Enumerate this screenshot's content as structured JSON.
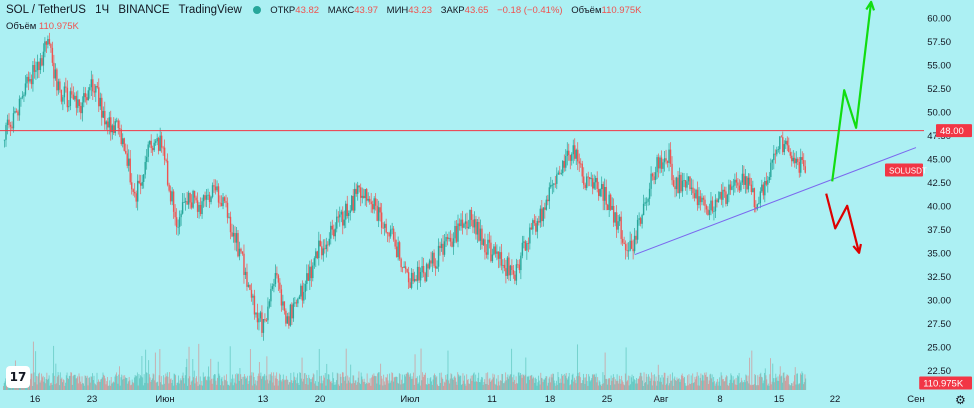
{
  "header": {
    "symbol": "SOL / TetherUS",
    "interval": "1Ч",
    "exchange": "BINANCE",
    "brand": "TradingView",
    "open_label": "ОТКР",
    "open_value": "43.82",
    "high_label": "МАКС",
    "high_value": "43.97",
    "low_label": "МИН",
    "low_value": "43.23",
    "close_label": "ЗАКР",
    "close_value": "43.65",
    "change": "−0.18 (−0.41%)",
    "volume_label": "Объём",
    "volume_value": "110.975K"
  },
  "volume_legend": {
    "label": "Объём",
    "value": "110.975K"
  },
  "logo_text": "17",
  "settings_icon": "gear-icon",
  "colors": {
    "background": "#acf0f3",
    "up": "#26a69a",
    "down": "#ef5350",
    "level_line": "#f23645",
    "trendline": "#7b68ee",
    "arrow_up": "#11dd11",
    "arrow_down": "#dd0000"
  },
  "chart_data": {
    "type": "candlestick",
    "symbol": "SOLUSDT",
    "y_ticks": [
      22.5,
      25.0,
      27.5,
      30.0,
      32.5,
      35.0,
      37.5,
      40.0,
      42.5,
      45.0,
      47.5,
      50.0,
      52.5,
      55.0,
      57.5,
      60.0
    ],
    "ylim": [
      20.4,
      61.9
    ],
    "x_ticks": [
      "16",
      "23",
      "Июн",
      "13",
      "20",
      "Июл",
      "11",
      "18",
      "25",
      "Авг",
      "8",
      "15",
      "22",
      "Сен"
    ],
    "price_path": [
      {
        "t": 0,
        "p": 47
      },
      {
        "t": 7,
        "p": 52
      },
      {
        "t": 11,
        "p": 55
      },
      {
        "t": 15,
        "p": 57
      },
      {
        "t": 19,
        "p": 52
      },
      {
        "t": 25,
        "p": 50.5
      },
      {
        "t": 31,
        "p": 53
      },
      {
        "t": 34,
        "p": 49
      },
      {
        "t": 40,
        "p": 47.5
      },
      {
        "t": 44,
        "p": 41
      },
      {
        "t": 49,
        "p": 46
      },
      {
        "t": 53,
        "p": 46.5
      },
      {
        "t": 58,
        "p": 38
      },
      {
        "t": 62,
        "p": 41
      },
      {
        "t": 66,
        "p": 40
      },
      {
        "t": 70,
        "p": 42
      },
      {
        "t": 75,
        "p": 39
      },
      {
        "t": 80,
        "p": 34
      },
      {
        "t": 84,
        "p": 29
      },
      {
        "t": 87,
        "p": 27
      },
      {
        "t": 91,
        "p": 32
      },
      {
        "t": 95,
        "p": 28
      },
      {
        "t": 100,
        "p": 31
      },
      {
        "t": 105,
        "p": 35
      },
      {
        "t": 110,
        "p": 37
      },
      {
        "t": 116,
        "p": 40
      },
      {
        "t": 120,
        "p": 42
      },
      {
        "t": 126,
        "p": 39
      },
      {
        "t": 131,
        "p": 36
      },
      {
        "t": 136,
        "p": 32
      },
      {
        "t": 141,
        "p": 33
      },
      {
        "t": 146,
        "p": 35
      },
      {
        "t": 151,
        "p": 37
      },
      {
        "t": 156,
        "p": 38.5
      },
      {
        "t": 161,
        "p": 36
      },
      {
        "t": 166,
        "p": 34
      },
      {
        "t": 171,
        "p": 33
      },
      {
        "t": 176,
        "p": 37
      },
      {
        "t": 181,
        "p": 40
      },
      {
        "t": 186,
        "p": 44
      },
      {
        "t": 190,
        "p": 46
      },
      {
        "t": 194,
        "p": 43
      },
      {
        "t": 199,
        "p": 42
      },
      {
        "t": 203,
        "p": 40
      },
      {
        "t": 207,
        "p": 37
      },
      {
        "t": 210,
        "p": 35
      },
      {
        "t": 214,
        "p": 40
      },
      {
        "t": 218,
        "p": 44
      },
      {
        "t": 222,
        "p": 45.5
      },
      {
        "t": 225,
        "p": 42
      },
      {
        "t": 228,
        "p": 43
      },
      {
        "t": 232,
        "p": 41
      },
      {
        "t": 236,
        "p": 40
      },
      {
        "t": 240,
        "p": 40.5
      },
      {
        "t": 244,
        "p": 42
      },
      {
        "t": 248,
        "p": 43
      },
      {
        "t": 252,
        "p": 40
      },
      {
        "t": 256,
        "p": 44
      },
      {
        "t": 260,
        "p": 47
      },
      {
        "t": 264,
        "p": 45
      },
      {
        "t": 268,
        "p": 43.6
      }
    ],
    "volume_range": [
      0,
      110.975
    ],
    "horizontal_level": 48.0,
    "price_labels": [
      {
        "text": "48.00",
        "value": 48.0
      },
      {
        "text": "SOLUSDT",
        "value": 43.65
      },
      {
        "text": "110.975K",
        "value": null
      }
    ],
    "trendline": [
      {
        "t": 211,
        "p": 34.8
      },
      {
        "t": 305,
        "p": 46.2
      }
    ],
    "arrow_up": [
      {
        "t": 277,
        "p": 42.6
      },
      {
        "t": 281,
        "p": 52.3
      },
      {
        "t": 285,
        "p": 48.3
      },
      {
        "t": 290,
        "p": 61.7
      }
    ],
    "arrow_down": [
      {
        "t": 275,
        "p": 41.3
      },
      {
        "t": 278,
        "p": 37.6
      },
      {
        "t": 282,
        "p": 40.0
      },
      {
        "t": 286,
        "p": 35.0
      }
    ]
  }
}
